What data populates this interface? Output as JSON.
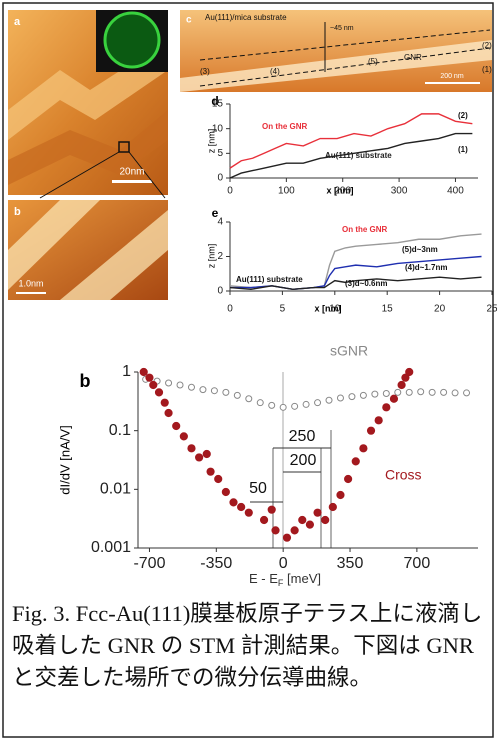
{
  "panels": {
    "a": {
      "label": "a",
      "scale": "20nm"
    },
    "b": {
      "label": "b",
      "scale": "1.0nm"
    },
    "c": {
      "label": "c",
      "title": "Au(111)/mica substrate",
      "height": "~45 nm",
      "markers": [
        "(2)",
        "(5)",
        "(4)",
        "(3)",
        "(1)"
      ],
      "gnr": "GNR",
      "scale": "200 nm"
    }
  },
  "chart_data": [
    {
      "type": "line",
      "label": "d",
      "y_label": "z [nm]",
      "x_label": "x [nm]",
      "xlim": [
        0,
        440
      ],
      "ylim": [
        0,
        15
      ],
      "xticks": [
        0,
        100,
        200,
        300,
        400
      ],
      "yticks": [
        0,
        5,
        10,
        15
      ],
      "x": [
        0,
        20,
        40,
        60,
        80,
        100,
        130,
        160,
        190,
        220,
        250,
        280,
        310,
        340,
        370,
        400,
        430
      ],
      "series": [
        {
          "name": "On the GNR",
          "color": "#e8303a",
          "values": [
            2,
            3.5,
            4,
            5,
            6,
            7,
            6.5,
            8,
            8,
            9,
            8.5,
            10,
            11,
            13,
            13,
            11.5,
            11
          ]
        },
        {
          "name": "Au(111) substrate",
          "color": "#222222",
          "values": [
            0,
            1,
            1.5,
            2,
            2.5,
            3,
            3,
            4,
            4.5,
            5,
            5.5,
            6,
            7,
            7.5,
            8,
            9,
            9
          ]
        }
      ],
      "annotations": [
        {
          "text": "(2)"
        },
        {
          "text": "(1)"
        }
      ]
    },
    {
      "type": "line",
      "label": "e",
      "y_label": "z [nm]",
      "x_label": "x [nm]",
      "xlim": [
        0,
        25
      ],
      "ylim": [
        0,
        4
      ],
      "xticks": [
        0,
        5,
        10,
        15,
        20,
        25
      ],
      "yticks": [
        0,
        2,
        4
      ],
      "x": [
        0,
        2,
        4,
        6,
        8,
        9,
        9.5,
        10,
        11,
        12,
        14,
        16,
        18,
        20,
        22,
        24
      ],
      "series": [
        {
          "color": "#9a9a9a",
          "values": [
            0.3,
            0.2,
            0.3,
            0.1,
            0.2,
            0.3,
            1.5,
            2.3,
            2.5,
            2.6,
            2.7,
            2.8,
            3.0,
            3.0,
            3.2,
            3.3
          ]
        },
        {
          "color": "#1f2fb0",
          "values": [
            0.2,
            0.2,
            0.3,
            0.1,
            0.2,
            0.3,
            0.9,
            1.3,
            1.4,
            1.5,
            1.4,
            1.6,
            1.7,
            1.8,
            1.9,
            2.0
          ]
        },
        {
          "color": "#222222",
          "values": [
            0.2,
            0.1,
            0.3,
            0.1,
            0.2,
            0.2,
            0.4,
            0.6,
            0.5,
            0.6,
            0.7,
            0.6,
            0.7,
            0.8,
            0.7,
            0.8
          ]
        }
      ],
      "annotations": [
        {
          "text": "On the GNR",
          "color": "#e8303a"
        },
        {
          "text": "(5)d~3nm"
        },
        {
          "text": "(4)d~1.7nm"
        },
        {
          "text": "(3)d~0.6nm"
        },
        {
          "text": "Au(111) substrate"
        }
      ]
    },
    {
      "type": "scatter",
      "label": "b",
      "y_label": "dI/dV [nA/V]",
      "x_label": {
        "main": "E - E",
        "sub": "F",
        "unit": " [meV]"
      },
      "log_y": true,
      "xlim": [
        -760,
        1020
      ],
      "ylim": [
        0.001,
        1
      ],
      "xticks": [
        -700,
        -350,
        0,
        350,
        700
      ],
      "yticks": [
        0.001,
        0.01,
        0.1,
        1
      ],
      "series": [
        {
          "name": "sGNR",
          "color": "#888888",
          "marker": "open",
          "x": [
            -720,
            -660,
            -600,
            -540,
            -480,
            -420,
            -360,
            -300,
            -240,
            -180,
            -120,
            -60,
            0,
            60,
            120,
            180,
            240,
            300,
            360,
            420,
            480,
            540,
            600,
            660,
            720,
            780,
            840,
            900,
            960
          ],
          "values": [
            0.75,
            0.7,
            0.65,
            0.6,
            0.55,
            0.5,
            0.48,
            0.45,
            0.4,
            0.35,
            0.3,
            0.27,
            0.25,
            0.26,
            0.28,
            0.3,
            0.33,
            0.36,
            0.38,
            0.4,
            0.42,
            0.43,
            0.45,
            0.45,
            0.46,
            0.45,
            0.45,
            0.44,
            0.44
          ]
        },
        {
          "name": "Cross",
          "color": "#a3191e",
          "marker": "filled",
          "x": [
            -730,
            -700,
            -680,
            -650,
            -620,
            -600,
            -560,
            -520,
            -480,
            -440,
            -400,
            -380,
            -340,
            -300,
            -260,
            -220,
            -180,
            -100,
            -60,
            -40,
            20,
            60,
            100,
            140,
            180,
            220,
            260,
            300,
            340,
            380,
            420,
            460,
            500,
            540,
            580,
            620,
            640,
            660
          ],
          "values": [
            1,
            0.8,
            0.6,
            0.45,
            0.3,
            0.2,
            0.12,
            0.08,
            0.05,
            0.035,
            0.04,
            0.02,
            0.015,
            0.009,
            0.006,
            0.005,
            0.004,
            0.003,
            0.0045,
            0.002,
            0.0015,
            0.002,
            0.003,
            0.0025,
            0.004,
            0.003,
            0.005,
            0.008,
            0.015,
            0.03,
            0.05,
            0.1,
            0.15,
            0.25,
            0.35,
            0.6,
            0.8,
            1
          ]
        }
      ],
      "annotations": [
        {
          "text": "250"
        },
        {
          "text": "200"
        },
        {
          "text": "50"
        }
      ]
    }
  ],
  "caption": "Fig. 3. Fcc-Au(111)膜基板原子テラス上に液滴し吸着した GNR の STM 計測結果。下図は GNR と交差した場所での微分伝導曲線。"
}
